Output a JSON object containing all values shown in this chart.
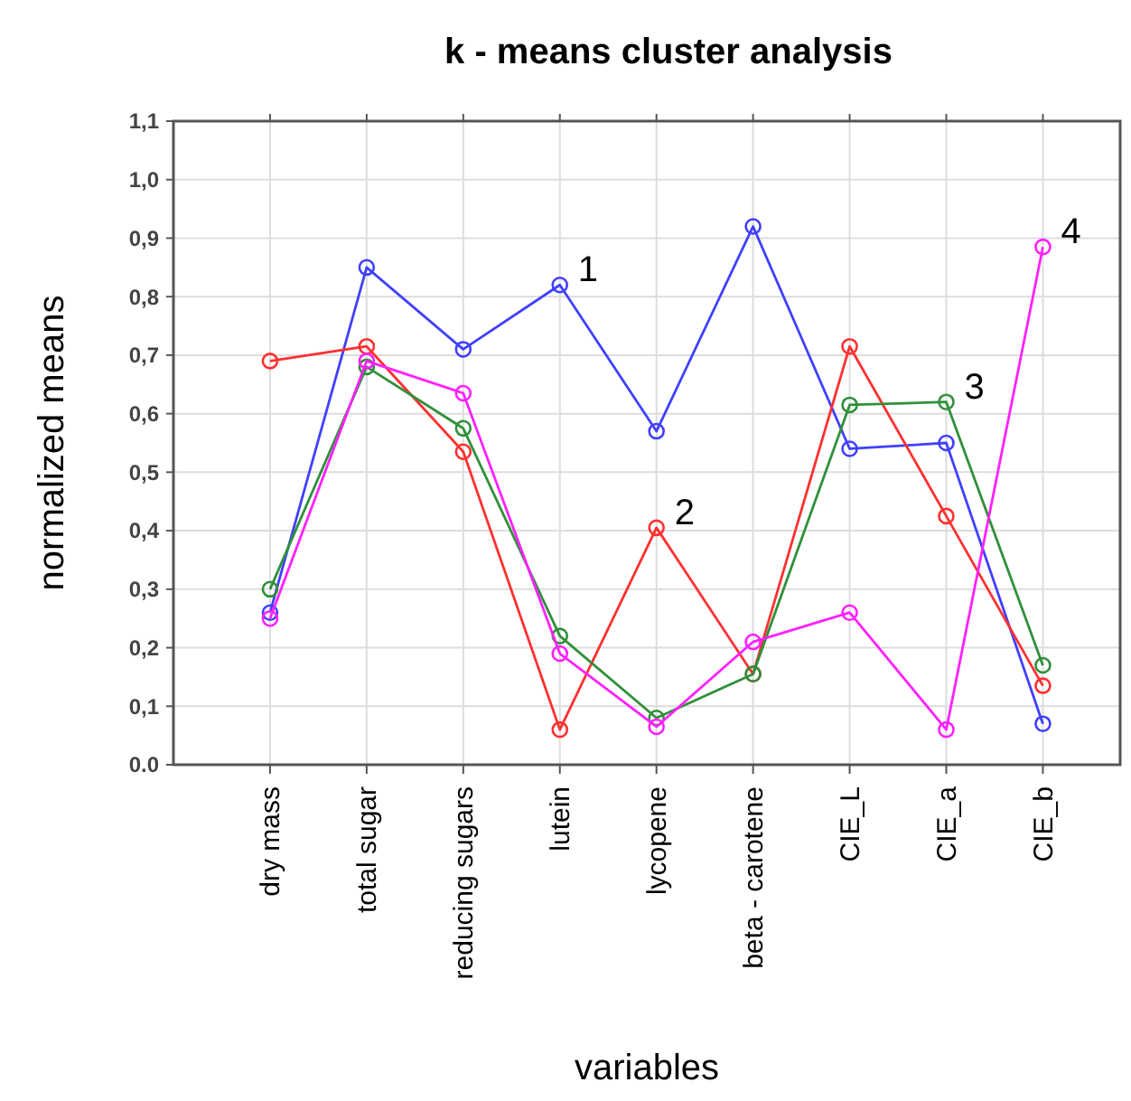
{
  "chart_data": {
    "type": "line",
    "title": "k - means cluster analysis",
    "xlabel": "variables",
    "ylabel": "normalized means",
    "categories": [
      "dry mass",
      "total sugar",
      "reducing sugars",
      "lutein",
      "lycopene",
      "beta - carotene",
      "CIE_L",
      "CIE_a",
      "CIE_b"
    ],
    "series": [
      {
        "color": "#4040ff",
        "values": [
          0.26,
          0.85,
          0.71,
          0.82,
          0.57,
          0.92,
          0.54,
          0.55,
          0.07
        ]
      },
      {
        "color": "#ff3030",
        "values": [
          0.69,
          0.715,
          0.535,
          0.06,
          0.405,
          0.155,
          0.715,
          0.425,
          0.135
        ]
      },
      {
        "color": "#30903a",
        "values": [
          0.3,
          0.68,
          0.575,
          0.22,
          0.08,
          0.155,
          0.615,
          0.62,
          0.17
        ]
      },
      {
        "color": "#ff20ff",
        "values": [
          0.25,
          0.69,
          0.635,
          0.19,
          0.065,
          0.21,
          0.26,
          0.06,
          0.885
        ]
      }
    ],
    "ylim": [
      0,
      1.1
    ],
    "yticks": [
      {
        "value": 0,
        "label": "0.0"
      },
      {
        "value": 0.1,
        "label": "0,1"
      },
      {
        "value": 0.2,
        "label": "0,2"
      },
      {
        "value": 0.3,
        "label": "0,3"
      },
      {
        "value": 0.4,
        "label": "0,4"
      },
      {
        "value": 0.5,
        "label": "0,5"
      },
      {
        "value": 0.6,
        "label": "0,6"
      },
      {
        "value": 0.7,
        "label": "0,7"
      },
      {
        "value": 0.8,
        "label": "0,8"
      },
      {
        "value": 0.9,
        "label": "0,9"
      },
      {
        "value": 1.0,
        "label": "1,0"
      },
      {
        "value": 1.1,
        "label": "1,1"
      }
    ],
    "annotations": [
      {
        "text": "1",
        "x": "lutein",
        "y": 0.82
      },
      {
        "text": "2",
        "x": "lycopene",
        "y": 0.405
      },
      {
        "text": "3",
        "x": "CIE_a",
        "y": 0.62
      },
      {
        "text": "4",
        "x": "CIE_b",
        "y": 0.885
      }
    ],
    "grid": true,
    "marker": "circle",
    "line_style": "solid"
  }
}
